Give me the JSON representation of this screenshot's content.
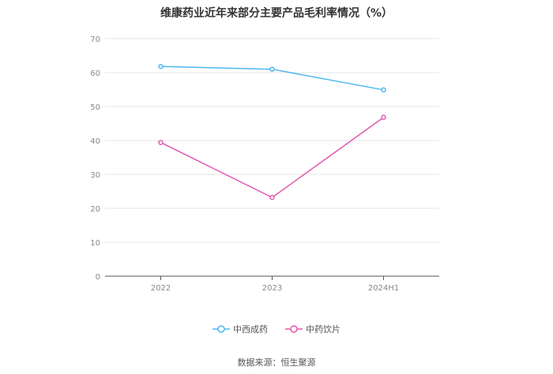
{
  "chart_data": {
    "type": "line",
    "title": "维康药业近年来部分主要产品毛利率情况（%）",
    "categories": [
      "2022",
      "2023",
      "2024H1"
    ],
    "series": [
      {
        "name": "中西成药",
        "values": [
          61.8,
          61.0,
          54.9
        ],
        "color": "#4db8f0"
      },
      {
        "name": "中药饮片",
        "values": [
          39.4,
          23.2,
          46.8
        ],
        "color": "#e05aae"
      }
    ],
    "ylim": [
      0,
      70
    ],
    "yticks": [
      0,
      10,
      20,
      30,
      40,
      50,
      60,
      70
    ],
    "grid": true,
    "legend": "bottom-center",
    "xlabel": "",
    "ylabel": ""
  },
  "source": "数据来源：恒生聚源"
}
